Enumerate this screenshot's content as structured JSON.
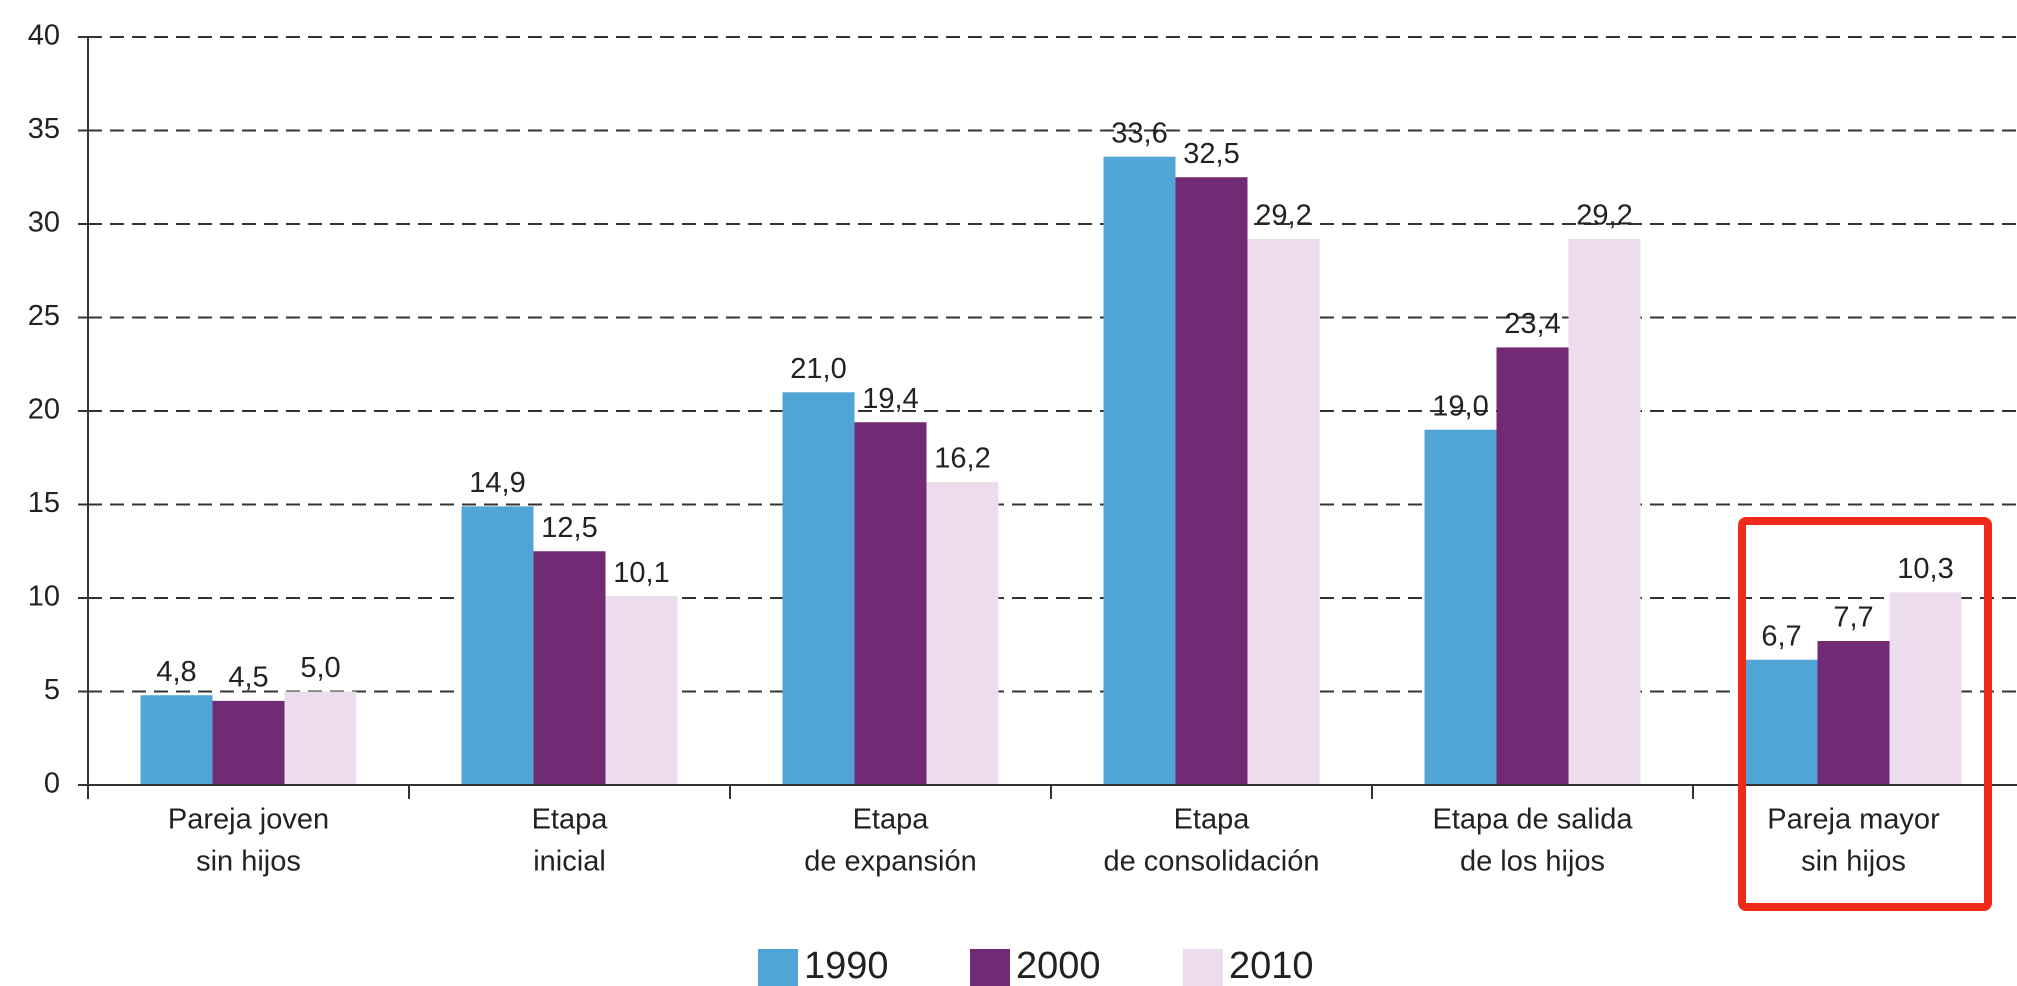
{
  "chart_data": {
    "type": "bar",
    "categories": [
      [
        "Pareja joven",
        "sin hijos"
      ],
      [
        "Etapa",
        "inicial"
      ],
      [
        "Etapa",
        "de expansión"
      ],
      [
        "Etapa",
        "de consolidación"
      ],
      [
        "Etapa de salida",
        "de los hijos"
      ],
      [
        "Pareja mayor",
        "sin hijos"
      ]
    ],
    "series": [
      {
        "name": "1990",
        "color": "#50a4d6",
        "values": [
          4.8,
          14.9,
          21.0,
          33.6,
          19.0,
          6.7
        ],
        "value_labels": [
          "4,8",
          "14,9",
          "21,0",
          "33,6",
          "19,0",
          "6,7"
        ]
      },
      {
        "name": "2000",
        "color": "#722a74",
        "values": [
          4.5,
          12.5,
          19.4,
          32.5,
          23.4,
          7.7
        ],
        "value_labels": [
          "4,5",
          "12,5",
          "19,4",
          "32,5",
          "23,4",
          "7,7"
        ]
      },
      {
        "name": "2010",
        "color": "#ecdcec",
        "values": [
          5.0,
          10.1,
          16.2,
          29.2,
          29.2,
          10.3
        ],
        "value_labels": [
          "5,0",
          "10,1",
          "16,2",
          "29,2",
          "29,2",
          "10,3"
        ]
      }
    ],
    "ylim": [
      0,
      40
    ],
    "yticks": [
      0,
      5,
      10,
      15,
      20,
      25,
      30,
      35,
      40
    ],
    "grid": true,
    "legend": "bottom"
  }
}
